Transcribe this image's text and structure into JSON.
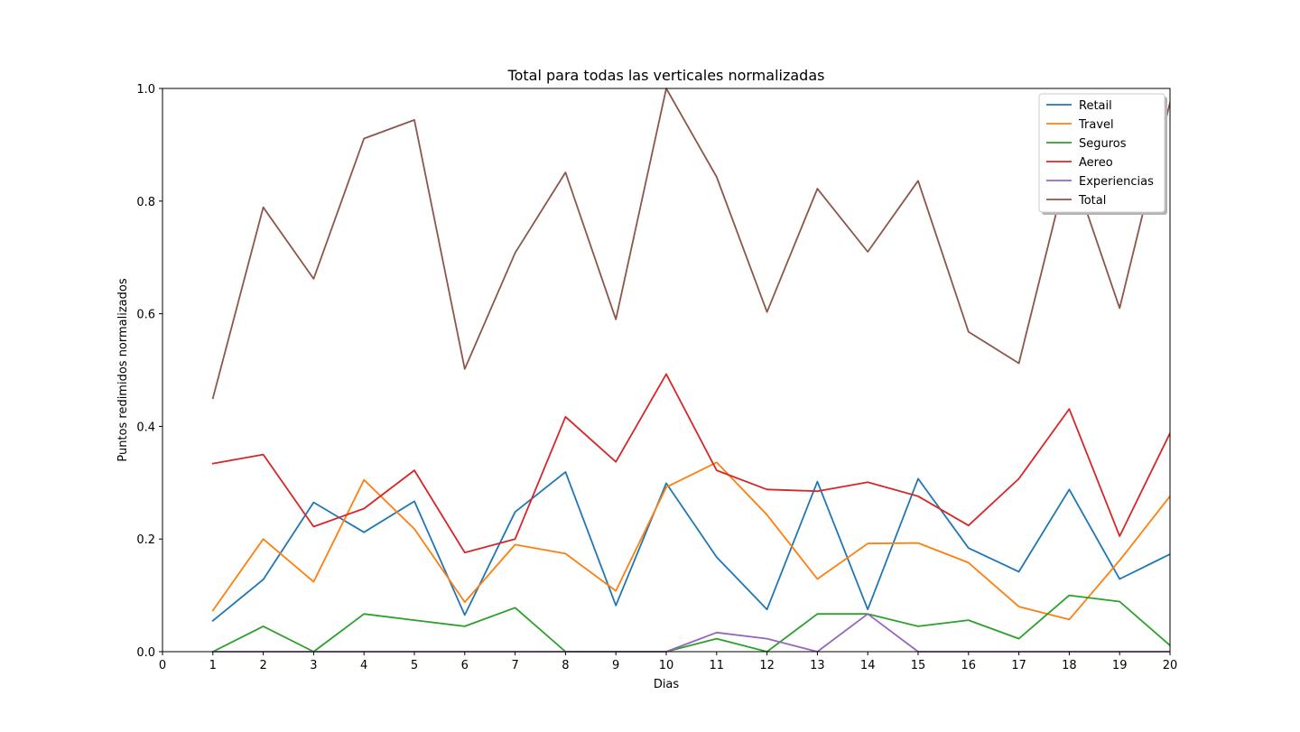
{
  "chart_data": {
    "type": "line",
    "title": "Total para todas las verticales normalizadas",
    "xlabel": "Dias",
    "ylabel": "Puntos redimidos normalizados",
    "xlim": [
      0,
      20
    ],
    "ylim": [
      0,
      1
    ],
    "x_ticks": [
      "0",
      "1",
      "2",
      "3",
      "4",
      "5",
      "6",
      "7",
      "8",
      "9",
      "10",
      "11",
      "12",
      "13",
      "14",
      "15",
      "16",
      "17",
      "18",
      "19",
      "20"
    ],
    "y_ticks": [
      "0.0",
      "0.2",
      "0.4",
      "0.6",
      "0.8",
      "1.0"
    ],
    "grid": false,
    "legend_position": "top-right",
    "x": [
      1,
      2,
      3,
      4,
      5,
      6,
      7,
      8,
      9,
      10,
      11,
      12,
      13,
      14,
      15,
      16,
      17,
      18,
      19,
      20
    ],
    "series": [
      {
        "name": "Retail",
        "color": "#1f77b4",
        "values": [
          0.055,
          0.128,
          0.265,
          0.212,
          0.267,
          0.065,
          0.248,
          0.319,
          0.082,
          0.299,
          0.168,
          0.075,
          0.302,
          0.075,
          0.307,
          0.184,
          0.142,
          0.288,
          0.129,
          0.173
        ]
      },
      {
        "name": "Travel",
        "color": "#ff7f0e",
        "values": [
          0.073,
          0.2,
          0.124,
          0.305,
          0.218,
          0.088,
          0.19,
          0.174,
          0.108,
          0.292,
          0.336,
          0.243,
          0.129,
          0.192,
          0.193,
          0.158,
          0.08,
          0.057,
          0.162,
          0.276
        ]
      },
      {
        "name": "Seguros",
        "color": "#2ca02c",
        "values": [
          0.0,
          0.045,
          0.0,
          0.067,
          0.056,
          0.045,
          0.078,
          0.0,
          0.0,
          0.0,
          0.023,
          0.0,
          0.067,
          0.067,
          0.045,
          0.056,
          0.023,
          0.1,
          0.089,
          0.011
        ]
      },
      {
        "name": "Aereo",
        "color": "#d62728",
        "values": [
          0.334,
          0.35,
          0.222,
          0.254,
          0.322,
          0.176,
          0.2,
          0.417,
          0.337,
          0.493,
          0.322,
          0.288,
          0.285,
          0.301,
          0.276,
          0.224,
          0.307,
          0.431,
          0.205,
          0.388
        ]
      },
      {
        "name": "Experiencias",
        "color": "#9467bd",
        "values": [
          0.0,
          0.0,
          0.0,
          0.0,
          0.0,
          0.0,
          0.0,
          0.0,
          0.0,
          0.0,
          0.034,
          0.023,
          0.0,
          0.067,
          0.0,
          0.0,
          0.0,
          0.0,
          0.0,
          0.0
        ]
      },
      {
        "name": "Total",
        "color": "#8c564b",
        "values": [
          0.45,
          0.789,
          0.662,
          0.911,
          0.944,
          0.502,
          0.708,
          0.851,
          0.59,
          1.0,
          0.843,
          0.603,
          0.822,
          0.71,
          0.836,
          0.568,
          0.512,
          0.872,
          0.61,
          0.975
        ]
      }
    ]
  }
}
